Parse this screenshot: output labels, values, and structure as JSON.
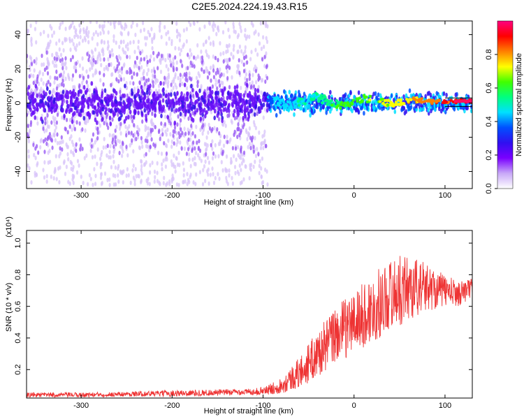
{
  "title": "C2E5.2024.224.19.43.R15",
  "chart_data": [
    {
      "type": "heatmap",
      "xlabel": "Height of straight line (km)",
      "ylabel": "Frequency (Hz)",
      "xlim": [
        -360,
        130
      ],
      "ylim": [
        -50,
        48
      ],
      "xticks": [
        "-300",
        "-200",
        "-100",
        "0",
        "100"
      ],
      "xtick_values": [
        -300,
        -200,
        -100,
        0,
        100
      ],
      "yticks": [
        "40",
        "20",
        "0",
        "-20",
        "-40"
      ],
      "ytick_values": [
        40,
        20,
        0,
        -20,
        -40
      ],
      "grid": false,
      "colorbar": {
        "label": "Normalized spectral amplitude",
        "range": [
          0,
          1
        ],
        "ticks": [
          "0.0",
          "0.2",
          "0.4",
          "0.6",
          "0.8"
        ],
        "tick_values": [
          0.0,
          0.2,
          0.4,
          0.6,
          0.8
        ],
        "colormap": [
          "#ffffff",
          "#c8a8f8",
          "#7a00ff",
          "#3010f0",
          "#0050ff",
          "#00e0ff",
          "#00ff80",
          "#40ff00",
          "#ffff00",
          "#ff8000",
          "#ff0000",
          "#ff0080"
        ]
      },
      "features": {
        "noise_region_x": [
          -360,
          -95
        ],
        "noise_spread_hz": 48,
        "core_band_x": [
          -360,
          130
        ],
        "core_band_halfwidth_hz": 8,
        "signal_line_x": [
          -95,
          130
        ],
        "signal_line_freq_hz": 1
      }
    },
    {
      "type": "line",
      "xlabel": "Height of straight line (km)",
      "ylabel": "SNR (10 * v/v)",
      "yscale_label": "(x10⁴)",
      "xlim": [
        -360,
        130
      ],
      "ylim": [
        0.02,
        1.08
      ],
      "xticks": [
        "-300",
        "-200",
        "-100",
        "0",
        "100"
      ],
      "xtick_values": [
        -300,
        -200,
        -100,
        0,
        100
      ],
      "yticks": [
        "0.2",
        "0.4",
        "0.6",
        "0.8",
        "1.0"
      ],
      "ytick_values": [
        0.2,
        0.4,
        0.6,
        0.8,
        1.0
      ],
      "grid": false,
      "color": "#ee3333",
      "series": [
        {
          "x": [
            -360,
            -300,
            -250,
            -200,
            -150,
            -110,
            -95,
            -80,
            -60,
            -40,
            -20,
            0,
            20,
            40,
            60,
            80,
            100,
            115,
            130
          ],
          "y": [
            0.04,
            0.04,
            0.045,
            0.05,
            0.055,
            0.06,
            0.07,
            0.1,
            0.18,
            0.3,
            0.42,
            0.5,
            0.58,
            0.68,
            0.72,
            0.72,
            0.7,
            0.68,
            0.72
          ],
          "spread": [
            0.015,
            0.015,
            0.015,
            0.02,
            0.02,
            0.02,
            0.03,
            0.05,
            0.1,
            0.15,
            0.18,
            0.2,
            0.22,
            0.22,
            0.22,
            0.15,
            0.1,
            0.08,
            0.06
          ]
        }
      ]
    }
  ]
}
